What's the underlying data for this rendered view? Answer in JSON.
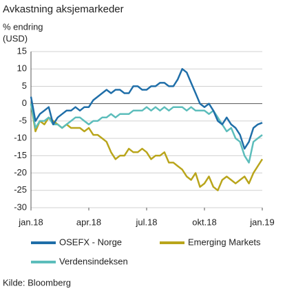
{
  "chart_data": {
    "type": "line",
    "title": "Avkastning aksjemarkeder",
    "y_label": [
      "% endring",
      "(USD)"
    ],
    "source": "Kilde: Bloomberg",
    "categories": [
      "jan.18",
      null,
      null,
      null,
      null,
      null,
      null,
      null,
      null,
      null,
      null,
      null,
      null,
      "apr.18",
      null,
      null,
      null,
      null,
      null,
      null,
      null,
      null,
      null,
      null,
      null,
      null,
      "jul.18",
      null,
      null,
      null,
      null,
      null,
      null,
      null,
      null,
      null,
      null,
      null,
      null,
      "okt.18",
      null,
      null,
      null,
      null,
      null,
      null,
      null,
      null,
      null,
      null,
      null,
      null,
      "jan.19"
    ],
    "series": [
      {
        "name": "OSEFX - Norge",
        "color": "#1f6ea8",
        "values": [
          2,
          -5,
          -3,
          -2,
          -1,
          -6,
          -4,
          -3,
          -2,
          -2,
          -1,
          -2,
          -1,
          -1,
          1,
          2,
          3,
          4,
          3,
          4,
          4,
          3,
          3,
          5,
          5,
          4,
          4,
          5,
          5,
          6,
          6,
          5,
          5,
          7,
          10,
          9,
          6,
          3,
          0,
          -1,
          0,
          -2,
          -5,
          -6,
          -4,
          -6,
          -7,
          -9,
          -13,
          -11,
          -7,
          -6,
          -5.5
        ]
      },
      {
        "name": "Emerging Markets",
        "color": "#b9a51b",
        "values": [
          0,
          -8,
          -5,
          -6,
          -4,
          -5,
          -6,
          -7,
          -6,
          -7,
          -7,
          -7,
          -8,
          -7,
          -9,
          -9,
          -10,
          -11,
          -14,
          -16,
          -15,
          -15,
          -13,
          -14,
          -14,
          -13,
          -14,
          -16,
          -15,
          -15,
          -14,
          -17,
          -17,
          -18,
          -19,
          -21,
          -22,
          -20,
          -24,
          -23,
          -21,
          -24,
          -25,
          -22,
          -21,
          -22,
          -23,
          -22,
          -21,
          -23,
          -20,
          -18,
          -16
        ]
      },
      {
        "name": "Verdensindeksen",
        "color": "#5cbdbb",
        "values": [
          0,
          -7,
          -5,
          -5,
          -4,
          -6,
          -6,
          -7,
          -6,
          -5,
          -4,
          -4,
          -5,
          -6,
          -5,
          -5,
          -4,
          -4,
          -3,
          -4,
          -3,
          -3,
          -3,
          -2,
          -2,
          -2,
          -1,
          -2,
          -1,
          -2,
          -1,
          -2,
          -1,
          -1,
          -1,
          -2,
          -1,
          -2,
          -2,
          -2,
          -3,
          -2,
          -4,
          -6,
          -8,
          -7,
          -10,
          -11,
          -15,
          -17,
          -11,
          -10,
          -9
        ]
      }
    ],
    "ylim": [
      -30,
      15
    ],
    "yticks": [
      15,
      10,
      5,
      0,
      -5,
      -10,
      -15,
      -20,
      -25,
      -30
    ],
    "grid": true
  }
}
